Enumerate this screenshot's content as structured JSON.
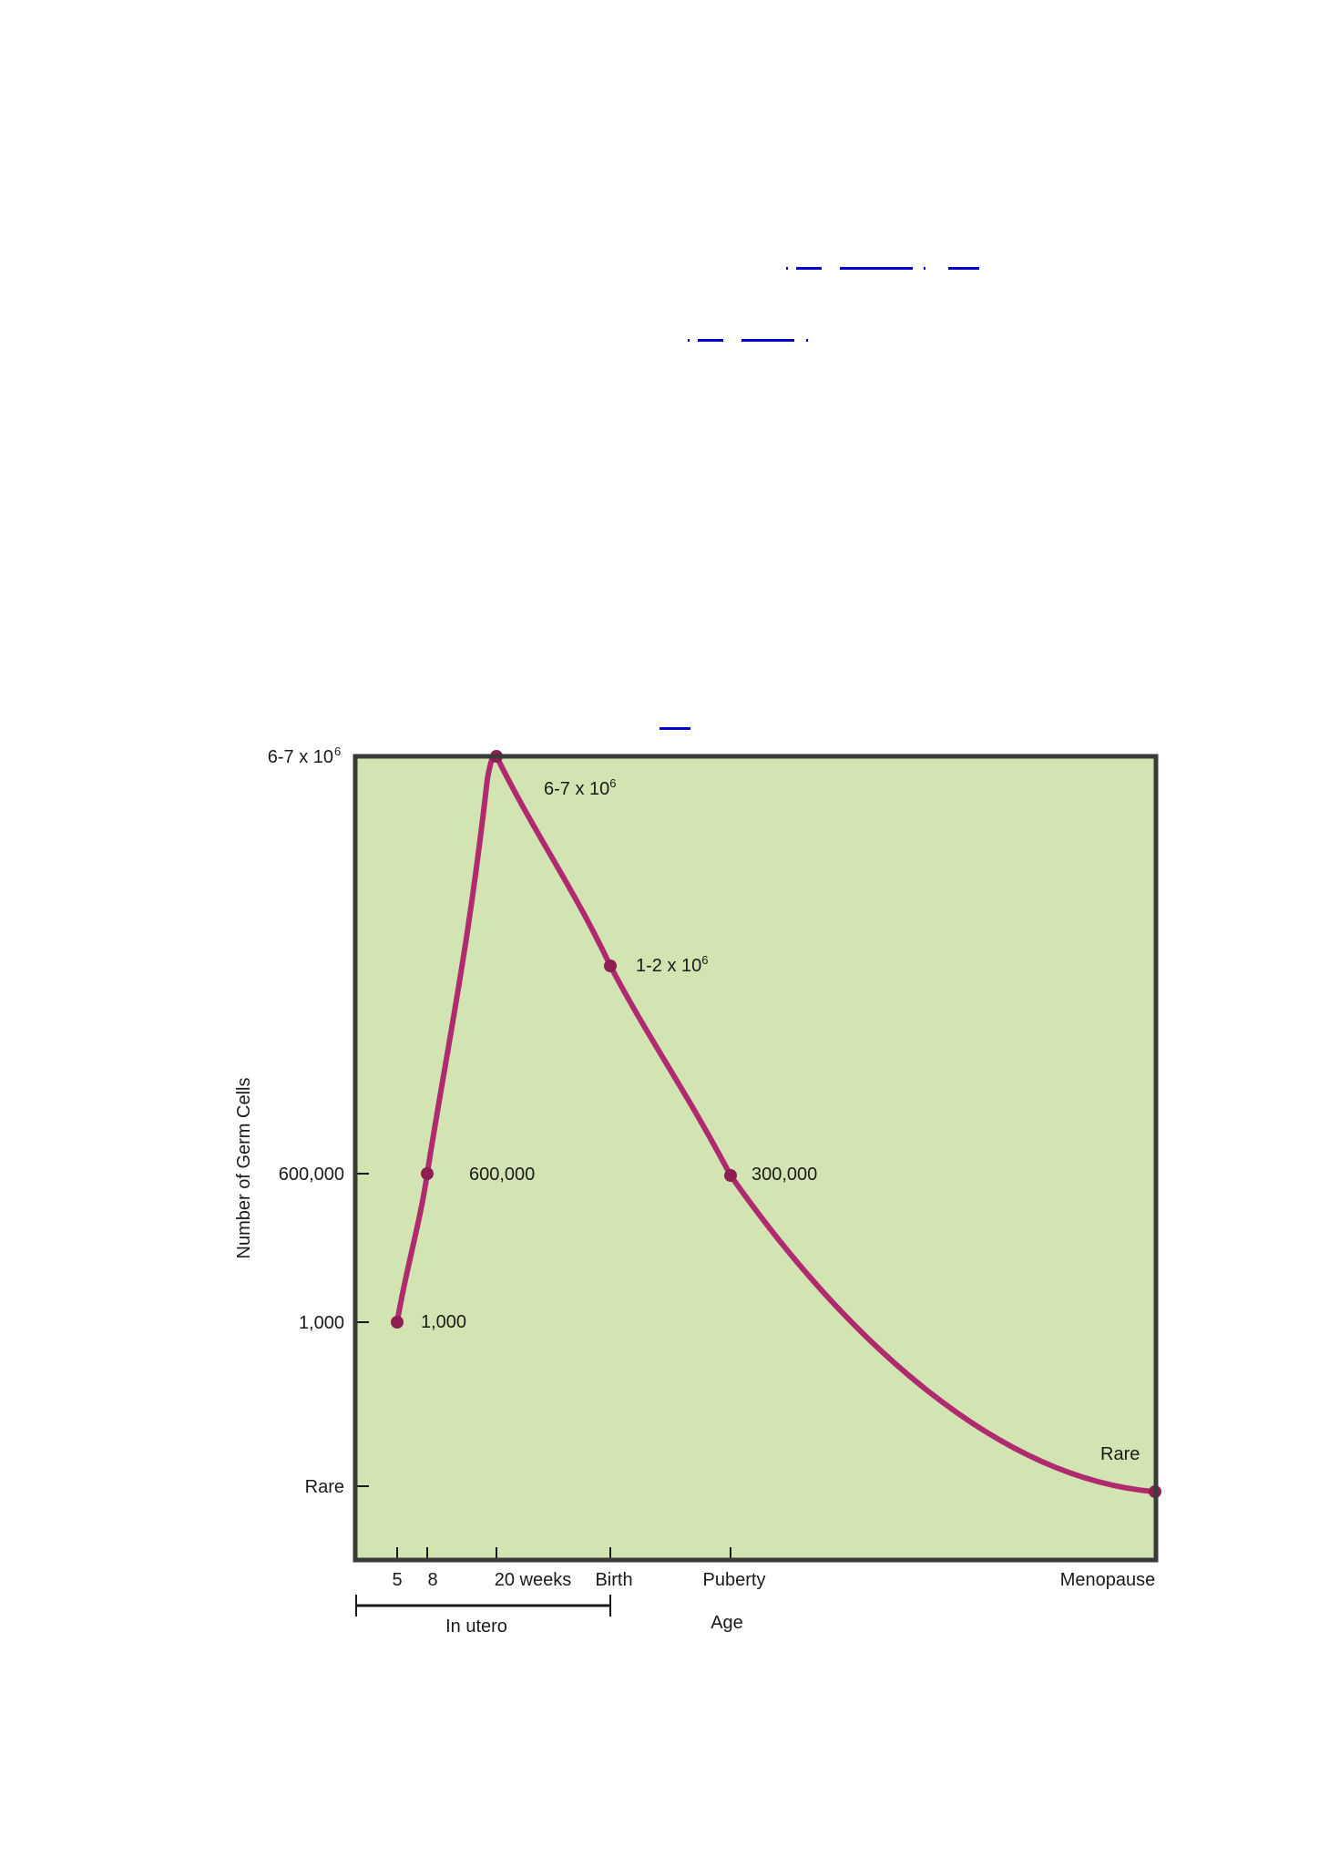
{
  "chart_data": {
    "type": "line",
    "ylabel": "Number of Germ Cells",
    "xlabel": "Age",
    "x_ticks": [
      "5",
      "8",
      "20 weeks",
      "Birth",
      "Puberty",
      "Menopause"
    ],
    "y_ticks": [
      {
        "label": "6-7 x 10",
        "sup": "6"
      },
      {
        "label": "600,000",
        "sup": ""
      },
      {
        "label": "1,000",
        "sup": ""
      },
      {
        "label": "Rare",
        "sup": ""
      }
    ],
    "bracket_label": "In utero",
    "points": [
      {
        "x": "5",
        "y": "1,000",
        "label": "1,000",
        "sup": ""
      },
      {
        "x": "8",
        "y": "600,000",
        "label": "600,000",
        "sup": ""
      },
      {
        "x": "20 weeks",
        "y": "6-7 x 10^6",
        "label": "6-7 x 10",
        "sup": "6"
      },
      {
        "x": "Birth",
        "y": "1-2 x 10^6",
        "label": "1-2 x 10",
        "sup": "6"
      },
      {
        "x": "Puberty",
        "y": "300,000",
        "label": "300,000",
        "sup": ""
      },
      {
        "x": "Menopause",
        "y": "Rare",
        "label": "Rare",
        "sup": ""
      }
    ],
    "colors": {
      "background": "#d1e4b1",
      "line": "#b02a6f",
      "marker": "#8e1d52",
      "frame": "#3a3a3a"
    },
    "grid": false
  }
}
